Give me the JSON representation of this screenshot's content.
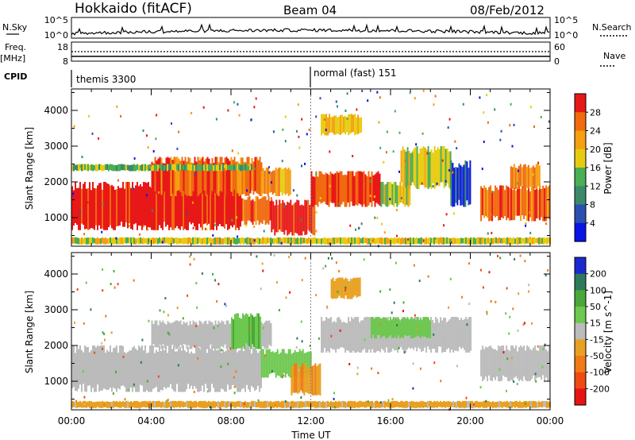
{
  "header": {
    "title": "Hokkaido (fitACF)",
    "beam": "Beam 04",
    "date": "08/Feb/2012"
  },
  "top_strips": {
    "nsky_label": "N.Sky",
    "nsky_ticks": [
      "10^5",
      "10^0"
    ],
    "nsearch_label": "N.Search",
    "nsearch_ticks": [
      "10^5",
      "10^0"
    ],
    "freq_label": "Freq.",
    "freq_unit": "[MHz]",
    "freq_ticks": [
      "18",
      "8"
    ],
    "nave_label": "Nave",
    "nave_ticks": [
      "60",
      "0"
    ],
    "cpid_label": "CPID",
    "cpid_segments": [
      "themis 3300",
      "normal (fast) 151"
    ]
  },
  "x_axis": {
    "title": "Time UT",
    "ticks": [
      "00:00",
      "04:00",
      "08:00",
      "12:00",
      "16:00",
      "20:00",
      "00:00"
    ]
  },
  "colors": {
    "power": [
      "#0a14e6",
      "#2a50b0",
      "#3a8a6a",
      "#4aae54",
      "#e6cc10",
      "#f5a010",
      "#f06a10",
      "#e81818"
    ],
    "velocity": [
      "#1a2ad0",
      "#2e7a5a",
      "#4aa83a",
      "#6cc84e",
      "#bbbbbb",
      "#e8a020",
      "#f07a18",
      "#f04a14",
      "#e81414"
    ]
  },
  "chart_data": [
    {
      "type": "heatmap",
      "title": "",
      "xlabel": "",
      "ylabel": "Slant Range [km]",
      "yticks": [
        "1000",
        "2000",
        "3000",
        "4000"
      ],
      "ylim": [
        200,
        4600
      ],
      "xlim": [
        "00:00",
        "24:00"
      ],
      "colorbar": {
        "label": "Power [dB]",
        "ticks": [
          "4",
          "8",
          "12",
          "16",
          "20",
          "24",
          "28"
        ],
        "range": [
          0,
          32
        ]
      },
      "patches": [
        {
          "x": [
            0.0,
            8.5
          ],
          "y": [
            650,
            2000
          ],
          "value": 30
        },
        {
          "x": [
            4.0,
            9.5
          ],
          "y": [
            1600,
            2700
          ],
          "value": 27
        },
        {
          "x": [
            8.5,
            10.0
          ],
          "y": [
            800,
            1600
          ],
          "value": 26
        },
        {
          "x": [
            10.0,
            12.2
          ],
          "y": [
            500,
            1500
          ],
          "value": 29
        },
        {
          "x": [
            9.5,
            11.0
          ],
          "y": [
            1600,
            2400
          ],
          "value": 22
        },
        {
          "x": [
            12.0,
            15.5
          ],
          "y": [
            1300,
            2300
          ],
          "value": 28
        },
        {
          "x": [
            15.5,
            17.0
          ],
          "y": [
            1300,
            2000
          ],
          "value": 18
        },
        {
          "x": [
            16.5,
            19.0
          ],
          "y": [
            1800,
            3000
          ],
          "value": 17
        },
        {
          "x": [
            19.0,
            20.0
          ],
          "y": [
            1300,
            2600
          ],
          "value": 6
        },
        {
          "x": [
            20.5,
            24.0
          ],
          "y": [
            900,
            1900
          ],
          "value": 27
        },
        {
          "x": [
            22.0,
            23.5
          ],
          "y": [
            1800,
            2500
          ],
          "value": 24
        },
        {
          "x": [
            0.0,
            24.0
          ],
          "y": [
            250,
            450
          ],
          "value": 18
        },
        {
          "x": [
            0.0,
            9.0
          ],
          "y": [
            2300,
            2500
          ],
          "value": 14
        },
        {
          "x": [
            12.5,
            14.5
          ],
          "y": [
            3300,
            3900
          ],
          "value": 20
        }
      ]
    },
    {
      "type": "heatmap",
      "title": "",
      "xlabel": "Time UT",
      "ylabel": "Slant Range [km]",
      "yticks": [
        "1000",
        "2000",
        "3000",
        "4000"
      ],
      "ylim": [
        200,
        4600
      ],
      "xlim": [
        "00:00",
        "24:00"
      ],
      "colorbar": {
        "label": "Velocity [m s^-1]",
        "ticks": [
          "200",
          "100",
          "50",
          "15",
          "-15",
          "-50",
          "-100",
          "-200"
        ],
        "range": [
          -250,
          250
        ]
      },
      "patches": [
        {
          "x": [
            0.0,
            9.5
          ],
          "y": [
            700,
            2000
          ],
          "value": 0
        },
        {
          "x": [
            4.0,
            10.0
          ],
          "y": [
            1900,
            2700
          ],
          "value": 0
        },
        {
          "x": [
            8.0,
            9.5
          ],
          "y": [
            1900,
            2900
          ],
          "value": 80
        },
        {
          "x": [
            9.5,
            12.0
          ],
          "y": [
            1100,
            1900
          ],
          "value": 60
        },
        {
          "x": [
            11.0,
            12.5
          ],
          "y": [
            600,
            1500
          ],
          "value": -80
        },
        {
          "x": [
            12.5,
            20.0
          ],
          "y": [
            1800,
            2800
          ],
          "value": 0
        },
        {
          "x": [
            20.5,
            24.0
          ],
          "y": [
            1000,
            2000
          ],
          "value": 0
        },
        {
          "x": [
            15.0,
            18.0
          ],
          "y": [
            2200,
            2800
          ],
          "value": 45
        },
        {
          "x": [
            0.0,
            24.0
          ],
          "y": [
            250,
            450
          ],
          "value": -40
        },
        {
          "x": [
            13.0,
            14.5
          ],
          "y": [
            3300,
            3900
          ],
          "value": -60
        }
      ]
    }
  ]
}
